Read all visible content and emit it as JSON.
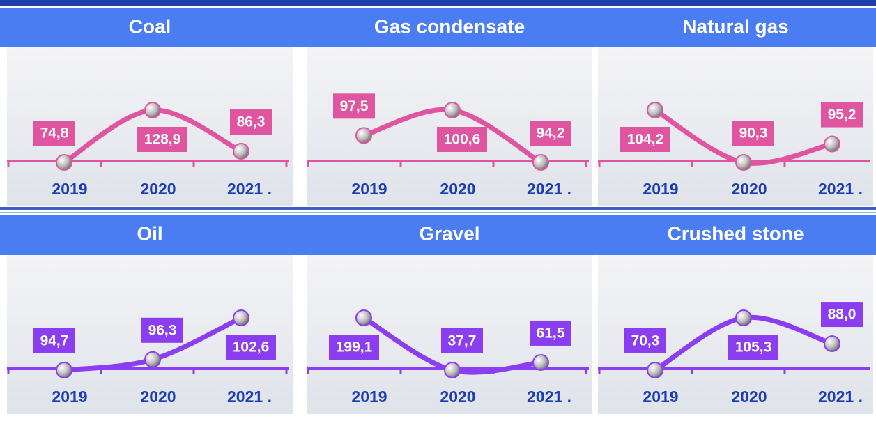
{
  "chart_data": [
    {
      "type": "line",
      "title": "Coal",
      "categories": [
        "2019",
        "2020",
        "2021 ."
      ],
      "values": [
        74.8,
        128.9,
        86.3
      ],
      "value_labels": [
        "74,8",
        "128,9",
        "86,3"
      ],
      "color": "#e0559f"
    },
    {
      "type": "line",
      "title": "Gas condensate",
      "categories": [
        "2019",
        "2020",
        "2021 ."
      ],
      "values": [
        97.5,
        100.6,
        94.2
      ],
      "value_labels": [
        "97,5",
        "100,6",
        "94,2"
      ],
      "color": "#e0559f"
    },
    {
      "type": "line",
      "title": "Natural gas",
      "categories": [
        "2019",
        "2020",
        "2021 ."
      ],
      "values": [
        104.2,
        90.3,
        95.2
      ],
      "value_labels": [
        "104,2",
        "90,3",
        "95,2"
      ],
      "color": "#e0559f"
    },
    {
      "type": "line",
      "title": "Oil",
      "categories": [
        "2019",
        "2020",
        "2021 ."
      ],
      "values": [
        94.7,
        96.3,
        102.6
      ],
      "value_labels": [
        "94,7",
        "96,3",
        "102,6"
      ],
      "color": "#8a3ef0"
    },
    {
      "type": "line",
      "title": "Gravel",
      "categories": [
        "2019",
        "2020",
        "2021 ."
      ],
      "values": [
        199.1,
        37.7,
        61.5
      ],
      "value_labels": [
        "199,1",
        "37,7",
        "61,5"
      ],
      "color": "#8a3ef0"
    },
    {
      "type": "line",
      "title": "Crushed stone",
      "categories": [
        "2019",
        "2020",
        "2021 ."
      ],
      "values": [
        70.3,
        105.3,
        88.0
      ],
      "value_labels": [
        "70,3",
        "105,3",
        "88,0"
      ],
      "color": "#8a3ef0"
    }
  ]
}
